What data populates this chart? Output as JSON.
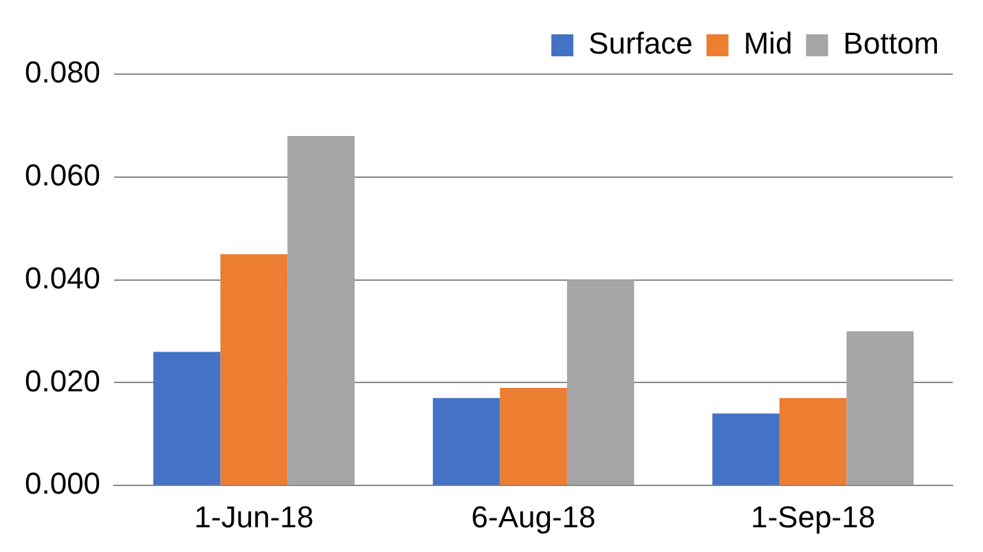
{
  "chart_data": {
    "type": "bar",
    "categories": [
      "1-Jun-18",
      "6-Aug-18",
      "1-Sep-18"
    ],
    "series": [
      {
        "name": "Surface",
        "color": "#4472c4",
        "values": [
          0.026,
          0.017,
          0.014
        ]
      },
      {
        "name": "Mid",
        "color": "#ed7d31",
        "values": [
          0.045,
          0.019,
          0.017
        ]
      },
      {
        "name": "Bottom",
        "color": "#a5a5a5",
        "values": [
          0.068,
          0.04,
          0.03
        ]
      }
    ],
    "ylim": [
      0,
      0.08
    ],
    "yticks": [
      {
        "value": 0,
        "label": "0.000"
      },
      {
        "value": 0.02,
        "label": "0.020"
      },
      {
        "value": 0.04,
        "label": "0.040"
      },
      {
        "value": 0.06,
        "label": "0.060"
      },
      {
        "value": 0.08,
        "label": "0.080"
      }
    ],
    "grid": "y",
    "legend": "top right"
  }
}
